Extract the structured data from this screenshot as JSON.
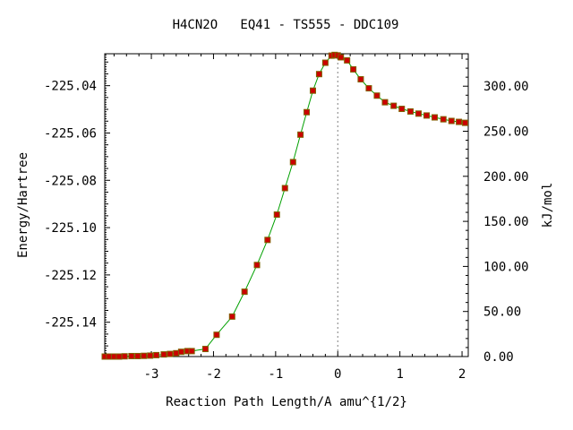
{
  "chart_data": {
    "type": "line",
    "title": "H4CN2O   EQ41 - TS555 - DDC109",
    "xlabel": "Reaction Path Length/A amu^{1/2}",
    "ylabel": "Energy/Hartree",
    "y2label": "kJ/mol",
    "xlim": [
      -3.75,
      2.1
    ],
    "ylim": [
      -225.1545,
      -225.0265
    ],
    "y2lim": [
      0,
      336
    ],
    "x_ticks": [
      -3,
      -2,
      -1,
      0,
      1,
      2
    ],
    "x_tick_labels": [
      "-3",
      "-2",
      "-1",
      "0",
      "1",
      "2"
    ],
    "y_ticks": [
      -225.04,
      -225.06,
      -225.08,
      -225.1,
      -225.12,
      -225.14
    ],
    "y_tick_labels": [
      "-225.04",
      "-225.06",
      "-225.08",
      "-225.10",
      "-225.12",
      "-225.14"
    ],
    "y2_ticks": [
      300,
      250,
      200,
      150,
      100,
      50,
      0
    ],
    "y2_tick_labels": [
      "300.00",
      "250.00",
      "200.00",
      "150.00",
      "100.00",
      "50.00",
      "0.00"
    ],
    "ts_marker_x": 0,
    "line_color": "#00a000",
    "marker_color": "#cc0000",
    "marker_outline": "#806000",
    "series": [
      {
        "x": [
          -3.75,
          -3.68,
          -3.6,
          -3.52,
          -3.43,
          -3.32,
          -3.22,
          -3.12,
          -3.02,
          -2.92,
          -2.8,
          -2.7,
          -2.6,
          -2.52,
          -2.42,
          -2.35,
          -2.13,
          -1.95,
          -1.7,
          -1.5,
          -1.3,
          -1.13,
          -0.98,
          -0.85,
          -0.72,
          -0.6,
          -0.5,
          -0.4,
          -0.3,
          -0.2,
          -0.1,
          -0.05,
          0.0,
          0.05,
          0.15,
          0.25,
          0.37,
          0.5,
          0.63,
          0.76,
          0.9,
          1.03,
          1.17,
          1.3,
          1.43,
          1.56,
          1.7,
          1.83,
          1.95,
          2.05
        ],
        "y": [
          -225.1545,
          -225.1545,
          -225.1545,
          -225.1545,
          -225.1544,
          -225.1543,
          -225.1543,
          -225.1542,
          -225.1541,
          -225.1539,
          -225.1536,
          -225.1534,
          -225.1531,
          -225.1525,
          -225.1522,
          -225.1522,
          -225.1513,
          -225.1453,
          -225.1376,
          -225.1271,
          -225.1158,
          -225.1052,
          -225.0945,
          -225.0833,
          -225.0723,
          -225.0607,
          -225.0512,
          -225.0421,
          -225.0351,
          -225.0303,
          -225.0273,
          -225.027,
          -225.0272,
          -225.028,
          -225.0293,
          -225.0331,
          -225.0373,
          -225.0411,
          -225.0442,
          -225.047,
          -225.0485,
          -225.0498,
          -225.0509,
          -225.0518,
          -225.0526,
          -225.0534,
          -225.0542,
          -225.0549,
          -225.0553,
          -225.0557
        ]
      }
    ]
  }
}
